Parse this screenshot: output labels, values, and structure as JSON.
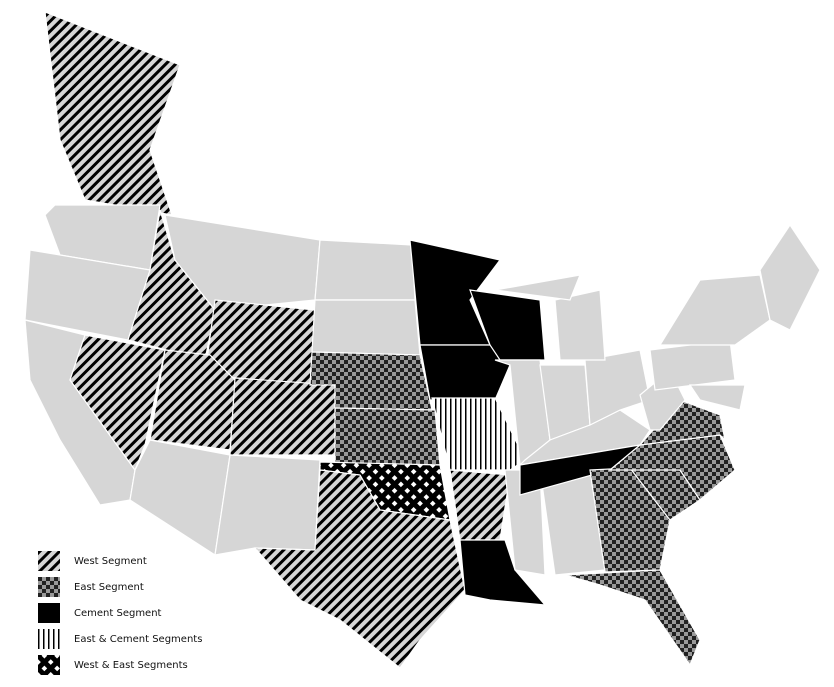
{
  "colors": {
    "base_state": "#d6d6d6",
    "border": "#ffffff",
    "pattern_ink": "#000000"
  },
  "legend": [
    {
      "label": "West Segment",
      "pattern": "west"
    },
    {
      "label": "East Segment",
      "pattern": "east"
    },
    {
      "label": "Cement Segment",
      "pattern": "cement"
    },
    {
      "label": "East & Cement Segments",
      "pattern": "eastcement"
    },
    {
      "label": "West & East Segments",
      "pattern": "westeast"
    }
  ]
}
